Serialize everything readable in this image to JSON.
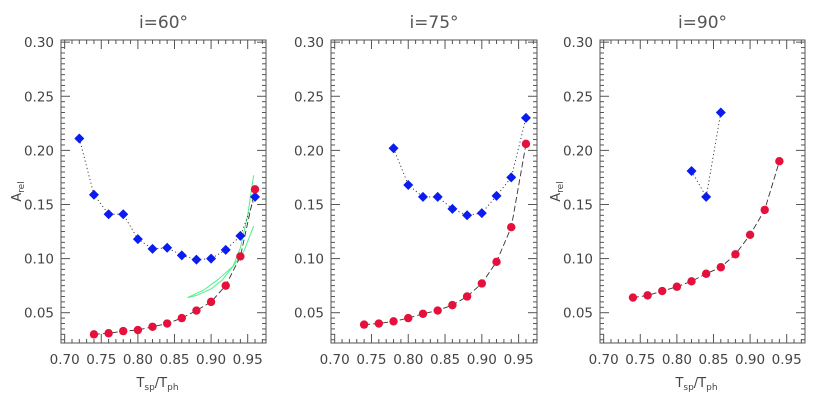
{
  "chart_data": [
    {
      "type": "scatter",
      "title": "i=60°",
      "xlabel_main": "T",
      "xlabel_sub1": "sp",
      "xlabel_sep": "/T",
      "xlabel_sub2": "ph",
      "ylabel_main": "A",
      "ylabel_sub": "rel",
      "xlim": [
        0.695,
        0.975
      ],
      "ylim": [
        0.022,
        0.302
      ],
      "xticks": [
        "0.70",
        "0.75",
        "0.80",
        "0.85",
        "0.90",
        "0.95"
      ],
      "yticks": [
        "0.05",
        "0.10",
        "0.15",
        "0.20",
        "0.25",
        "0.30"
      ],
      "show_ylabel": true,
      "series": [
        {
          "marker": "diamond",
          "color": "#0a1cf0",
          "line": "dotted",
          "x": [
            0.72,
            0.74,
            0.76,
            0.78,
            0.8,
            0.82,
            0.84,
            0.86,
            0.88,
            0.9,
            0.92,
            0.94,
            0.96
          ],
          "y": [
            0.211,
            0.159,
            0.141,
            0.141,
            0.118,
            0.109,
            0.11,
            0.103,
            0.099,
            0.1,
            0.108,
            0.121,
            0.157
          ]
        },
        {
          "marker": "circle",
          "color": "#e5103c",
          "line": "dashed",
          "x": [
            0.74,
            0.76,
            0.78,
            0.8,
            0.82,
            0.84,
            0.86,
            0.88,
            0.9,
            0.92,
            0.94,
            0.96
          ],
          "y": [
            0.03,
            0.031,
            0.033,
            0.034,
            0.037,
            0.04,
            0.045,
            0.052,
            0.06,
            0.075,
            0.102,
            0.164
          ]
        }
      ],
      "curves": [
        {
          "color": "#4cf08a",
          "x": [
            0.868,
            0.88,
            0.9,
            0.915,
            0.93,
            0.94,
            0.95,
            0.958
          ],
          "y": [
            0.064,
            0.066,
            0.072,
            0.08,
            0.093,
            0.11,
            0.14,
            0.177
          ]
        },
        {
          "color": "#4cf08a",
          "x": [
            0.868,
            0.89,
            0.91,
            0.93,
            0.945,
            0.958
          ],
          "y": [
            0.064,
            0.071,
            0.081,
            0.093,
            0.107,
            0.13
          ]
        }
      ]
    },
    {
      "type": "scatter",
      "title": "i=75°",
      "xlabel_main": "",
      "xlabel_sub1": "",
      "xlabel_sep": "",
      "xlabel_sub2": "",
      "ylabel_main": "",
      "ylabel_sub": "",
      "xlim": [
        0.695,
        0.975
      ],
      "ylim": [
        0.022,
        0.302
      ],
      "xticks": [
        "0.70",
        "0.75",
        "0.80",
        "0.85",
        "0.90",
        "0.95"
      ],
      "yticks": [
        "0.05",
        "0.10",
        "0.15",
        "0.20",
        "0.25",
        "0.30"
      ],
      "show_ylabel": false,
      "series": [
        {
          "marker": "diamond",
          "color": "#0a1cf0",
          "line": "dotted",
          "x": [
            0.78,
            0.8,
            0.82,
            0.84,
            0.86,
            0.88,
            0.9,
            0.92,
            0.94,
            0.96
          ],
          "y": [
            0.202,
            0.168,
            0.157,
            0.157,
            0.146,
            0.14,
            0.142,
            0.158,
            0.175,
            0.23
          ]
        },
        {
          "marker": "circle",
          "color": "#e5103c",
          "line": "dashed",
          "x": [
            0.74,
            0.76,
            0.78,
            0.8,
            0.82,
            0.84,
            0.86,
            0.88,
            0.9,
            0.92,
            0.94,
            0.96
          ],
          "y": [
            0.039,
            0.04,
            0.042,
            0.045,
            0.049,
            0.052,
            0.057,
            0.065,
            0.077,
            0.097,
            0.129,
            0.206
          ]
        }
      ],
      "curves": []
    },
    {
      "type": "scatter",
      "title": "i=90°",
      "xlabel_main": "T",
      "xlabel_sub1": "sp",
      "xlabel_sep": "/T",
      "xlabel_sub2": "ph",
      "ylabel_main": "A",
      "ylabel_sub": "rel",
      "xlim": [
        0.695,
        0.975
      ],
      "ylim": [
        0.022,
        0.302
      ],
      "xticks": [
        "0.70",
        "0.75",
        "0.80",
        "0.85",
        "0.90",
        "0.95"
      ],
      "yticks": [
        "0.05",
        "0.10",
        "0.15",
        "0.20",
        "0.25",
        "0.30"
      ],
      "show_ylabel": true,
      "series": [
        {
          "marker": "diamond",
          "color": "#0a1cf0",
          "line": "dotted",
          "x": [
            0.82,
            0.84,
            0.86
          ],
          "y": [
            0.181,
            0.157,
            0.235
          ]
        },
        {
          "marker": "circle",
          "color": "#e5103c",
          "line": "dashed",
          "x": [
            0.74,
            0.76,
            0.78,
            0.8,
            0.82,
            0.84,
            0.86,
            0.88,
            0.9,
            0.92,
            0.94
          ],
          "y": [
            0.064,
            0.066,
            0.07,
            0.074,
            0.079,
            0.086,
            0.092,
            0.104,
            0.122,
            0.145,
            0.19
          ]
        }
      ],
      "curves": []
    }
  ]
}
